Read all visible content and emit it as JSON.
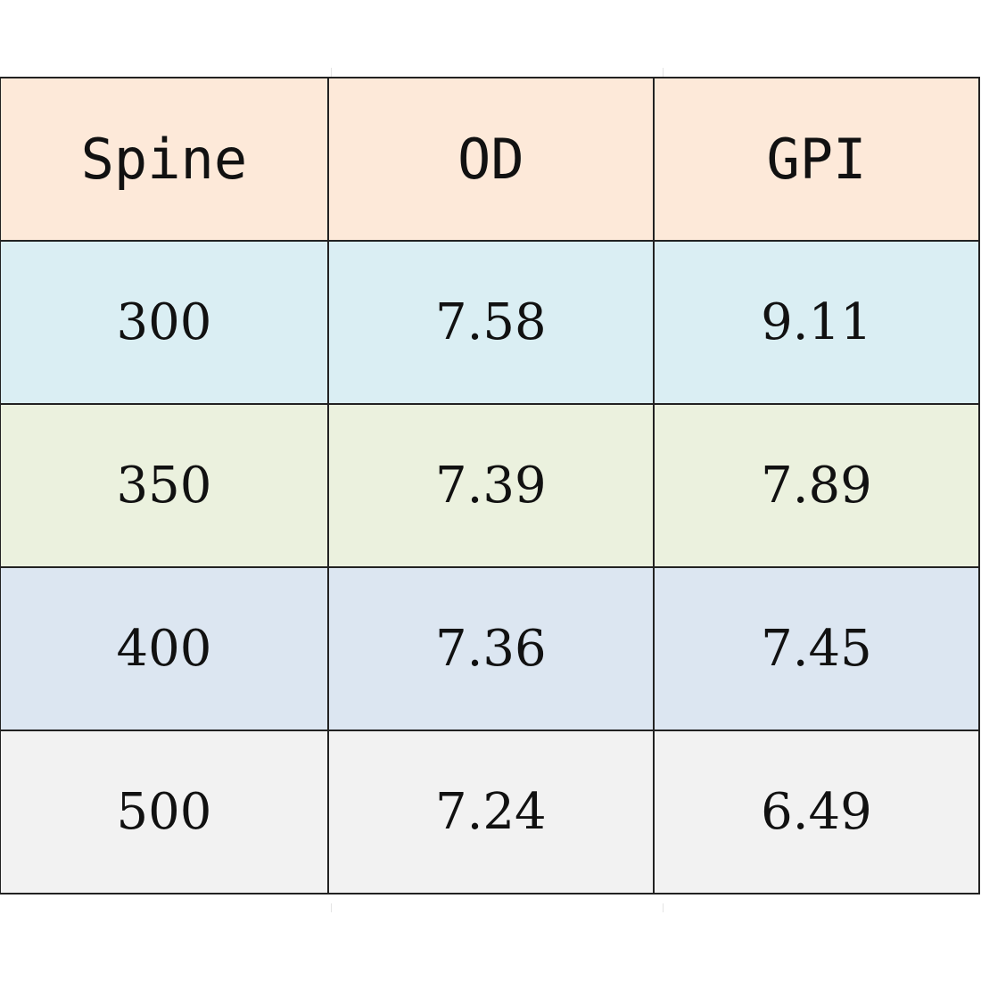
{
  "chart_data": {
    "type": "table",
    "columns": [
      "Spine",
      "OD",
      "GPI"
    ],
    "rows": [
      [
        "300",
        "7.58",
        "9.11"
      ],
      [
        "350",
        "7.39",
        "7.89"
      ],
      [
        "400",
        "7.36",
        "7.45"
      ],
      [
        "500",
        "7.24",
        "6.49"
      ]
    ],
    "row_colors": [
      "#daeef3",
      "#ebf1de",
      "#dce6f1",
      "#f2f2f2"
    ],
    "header_color": "#fde9d9",
    "border_color": "#222222"
  }
}
